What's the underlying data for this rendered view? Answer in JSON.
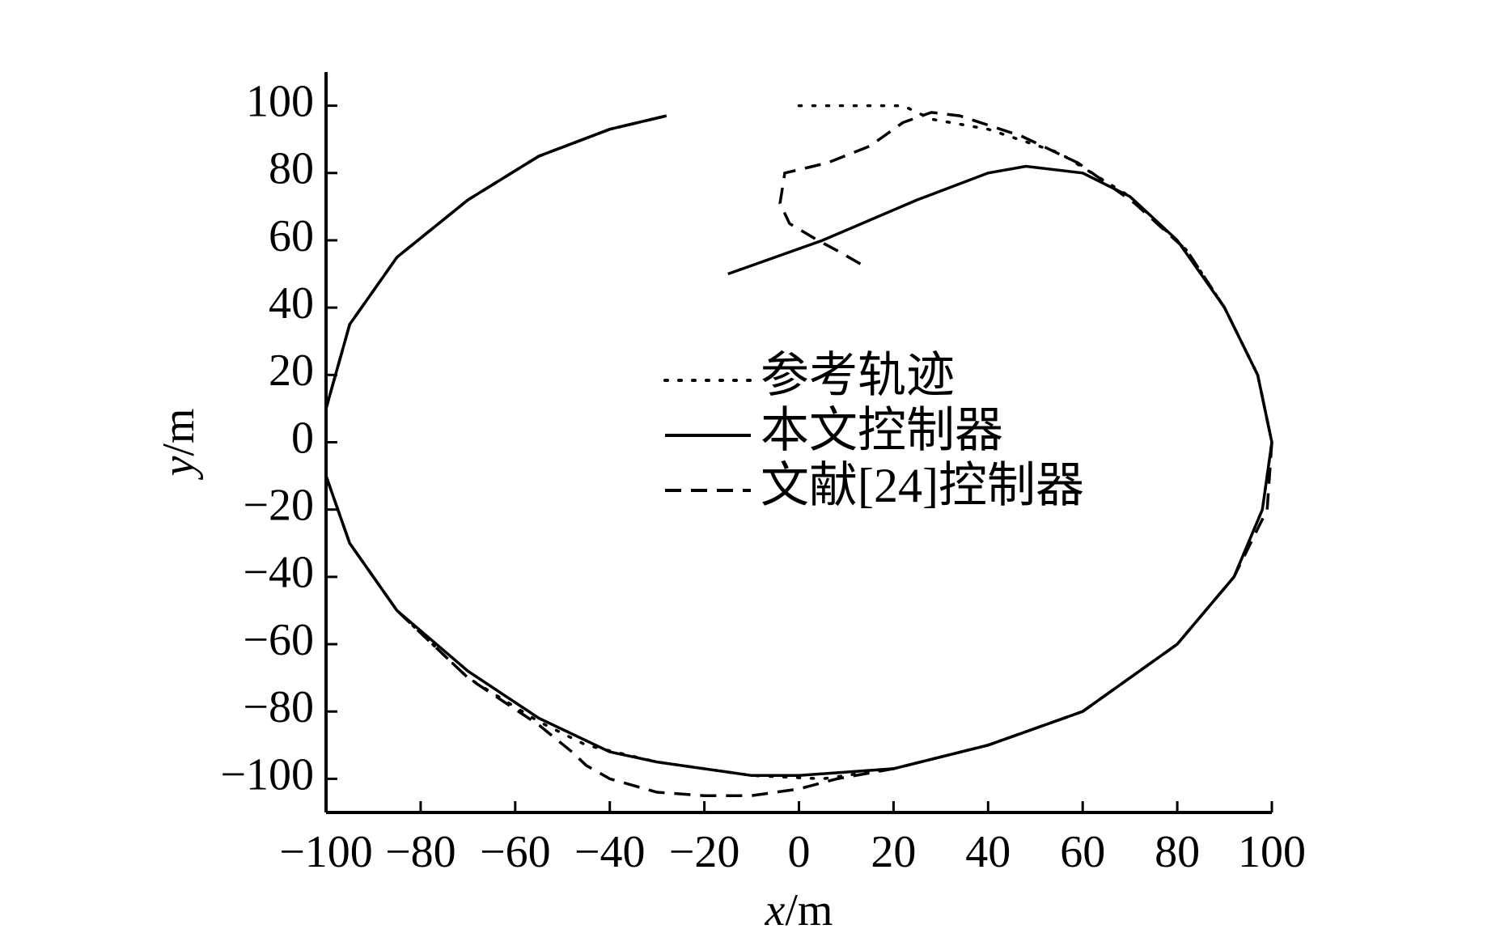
{
  "chart_data": {
    "type": "line",
    "xlabel": "x/m",
    "ylabel": "y/m",
    "xlim": [
      -100,
      100
    ],
    "ylim": [
      -110,
      110
    ],
    "xticks": [
      {
        "value": -100,
        "label": "−100"
      },
      {
        "value": -80,
        "label": "−80"
      },
      {
        "value": -60,
        "label": "−60"
      },
      {
        "value": -40,
        "label": "−40"
      },
      {
        "value": -20,
        "label": "−20"
      },
      0,
      20,
      40,
      60,
      80,
      100
    ],
    "yticks": [
      {
        "value": -100,
        "label": "−100"
      },
      {
        "value": -80,
        "label": "−80"
      },
      {
        "value": -60,
        "label": "−60"
      },
      {
        "value": -40,
        "label": "−40"
      },
      {
        "value": -20,
        "label": "−20"
      },
      0,
      20,
      40,
      60,
      80,
      100
    ],
    "legend": "center",
    "grid": false,
    "series": [
      {
        "name": "参考轨迹",
        "color": "#000000",
        "linestyle": "dotted",
        "x": [
          0,
          22,
          28,
          40,
          55,
          70,
          82,
          90,
          97,
          100,
          98,
          92,
          80,
          60,
          40,
          20,
          5,
          -10,
          -30,
          -45,
          -55,
          -70,
          -85,
          -95,
          -100,
          -100,
          -95,
          -85,
          -70,
          -55,
          -40,
          -28
        ],
        "values": [
          100,
          100,
          96,
          93,
          86,
          73,
          57,
          40,
          20,
          0,
          -20,
          -40,
          -60,
          -80,
          -90,
          -97,
          -100,
          -99,
          -95,
          -90,
          -83,
          -70,
          -50,
          -30,
          -10,
          10,
          35,
          55,
          72,
          85,
          93,
          97
        ]
      },
      {
        "name": "本文控制器",
        "color": "#000000",
        "linestyle": "solid",
        "x": [
          -15,
          5,
          25,
          40,
          48,
          60,
          70,
          80,
          90,
          97,
          100,
          98,
          92,
          80,
          60,
          40,
          20,
          0,
          -10,
          -30,
          -40,
          -55,
          -70,
          -85,
          -95,
          -100,
          -100,
          -95,
          -85,
          -70,
          -55,
          -40,
          -28
        ],
        "values": [
          50,
          60,
          72,
          80,
          82,
          80,
          73,
          60,
          40,
          20,
          0,
          -20,
          -40,
          -60,
          -80,
          -90,
          -97,
          -99,
          -99,
          -95,
          -92,
          -82,
          -68,
          -50,
          -30,
          -10,
          10,
          35,
          55,
          72,
          85,
          93,
          97
        ]
      },
      {
        "name": "文献[24]控制器",
        "color": "#000000",
        "linestyle": "dashed",
        "x": [
          13,
          8,
          4,
          -2,
          -4,
          -3,
          6,
          15,
          22,
          28,
          34,
          47,
          59,
          71,
          82,
          90,
          97,
          100,
          99,
          92,
          80,
          60,
          40,
          20,
          8,
          0,
          -10,
          -20,
          -30,
          -40,
          -45,
          -48,
          -55,
          -70,
          -85,
          -95,
          -100,
          -100,
          -95,
          -85,
          -70,
          -55,
          -40,
          -28
        ],
        "values": [
          53,
          57,
          60,
          65,
          71,
          80,
          83,
          88,
          95,
          98,
          97,
          91,
          83,
          71,
          57,
          40,
          20,
          0,
          -20,
          -40,
          -60,
          -80,
          -90,
          -97,
          -100,
          -103,
          -105,
          -105,
          -104,
          -100,
          -96,
          -92,
          -84,
          -70,
          -50,
          -30,
          -10,
          10,
          35,
          55,
          72,
          85,
          93,
          97
        ]
      }
    ]
  }
}
